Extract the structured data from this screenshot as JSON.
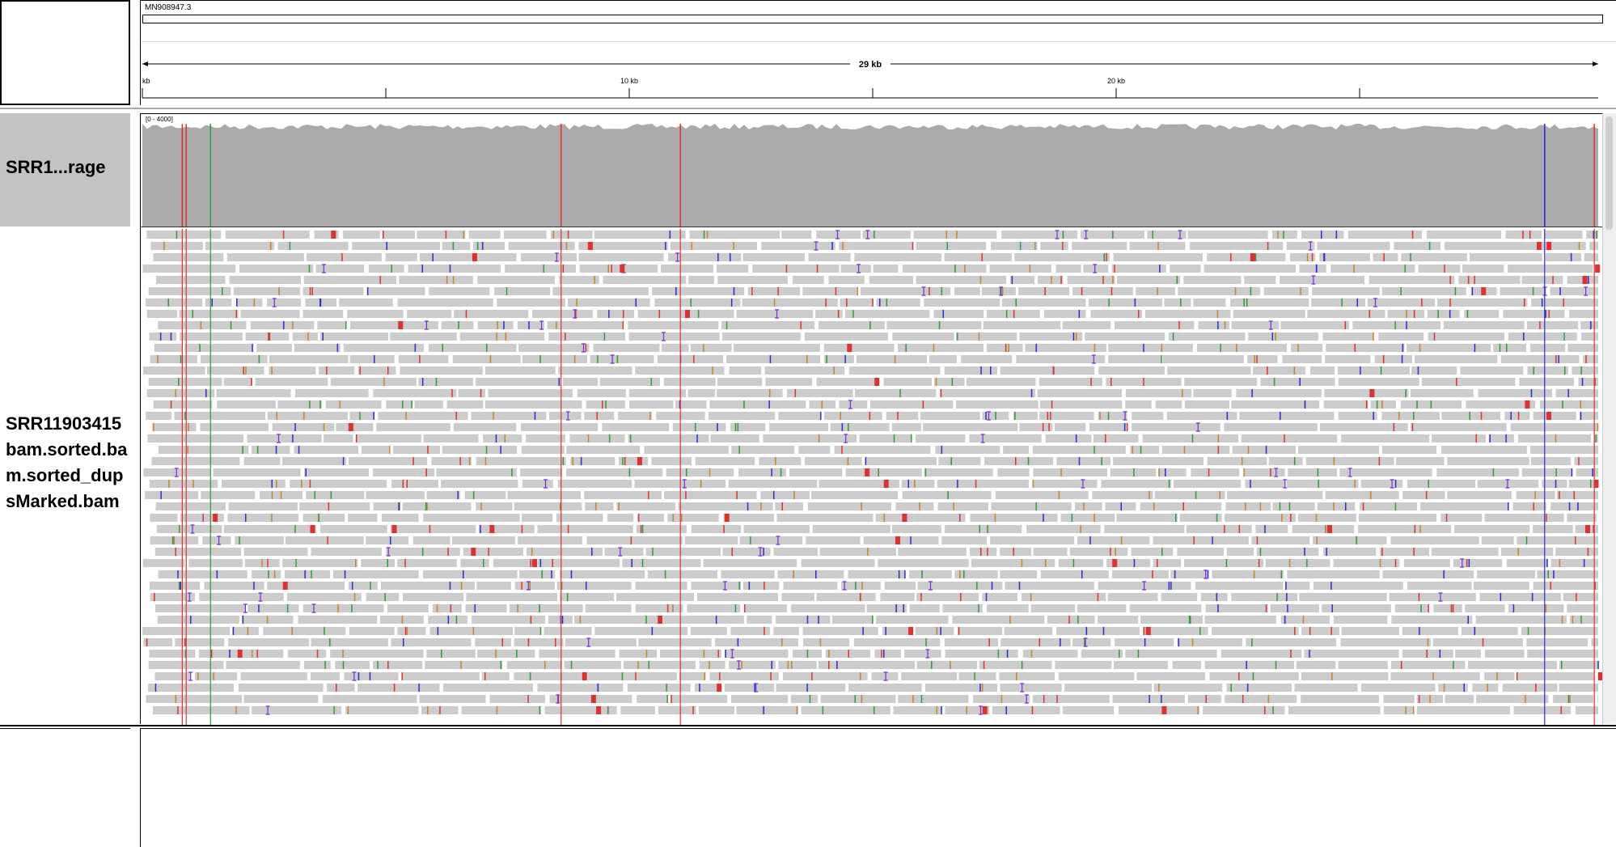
{
  "ruler": {
    "chromosome": "MN908947.3",
    "span_label": "29 kb",
    "ticks": [
      {
        "label": "kb",
        "pos_kb": 0
      },
      {
        "label": "",
        "pos_kb": 5
      },
      {
        "label": "10 kb",
        "pos_kb": 10
      },
      {
        "label": "",
        "pos_kb": 15
      },
      {
        "label": "20 kb",
        "pos_kb": 20
      },
      {
        "label": "",
        "pos_kb": 25
      }
    ],
    "genome_length_kb": 29.9
  },
  "tracks": {
    "coverage": {
      "name": "SRR1...rage",
      "range": "[0 - 4000]",
      "fill_color": "#aaaaaa"
    },
    "alignment": {
      "name": "SRR11903415 bam.sorted.bam.sorted_dupsMarked.bam",
      "read_color": "#cccccc"
    }
  },
  "variant_sites": [
    {
      "pos_kb": 0.82,
      "color": "#e03030"
    },
    {
      "pos_kb": 0.9,
      "color": "#e03030"
    },
    {
      "pos_kb": 1.4,
      "color": "#2f9a3a"
    },
    {
      "pos_kb": 8.6,
      "color": "#e03030"
    },
    {
      "pos_kb": 11.05,
      "color": "#e03030"
    },
    {
      "pos_kb": 28.8,
      "color": "#2b2bd6"
    },
    {
      "pos_kb": 29.82,
      "color": "#e03030"
    }
  ],
  "colors": {
    "mismatch_A": "#2f9a3a",
    "mismatch_C": "#2b2bd6",
    "mismatch_G": "#c8842a",
    "mismatch_T": "#e03030",
    "insertion": "#7a2bd6",
    "softclip": "#e03030"
  }
}
